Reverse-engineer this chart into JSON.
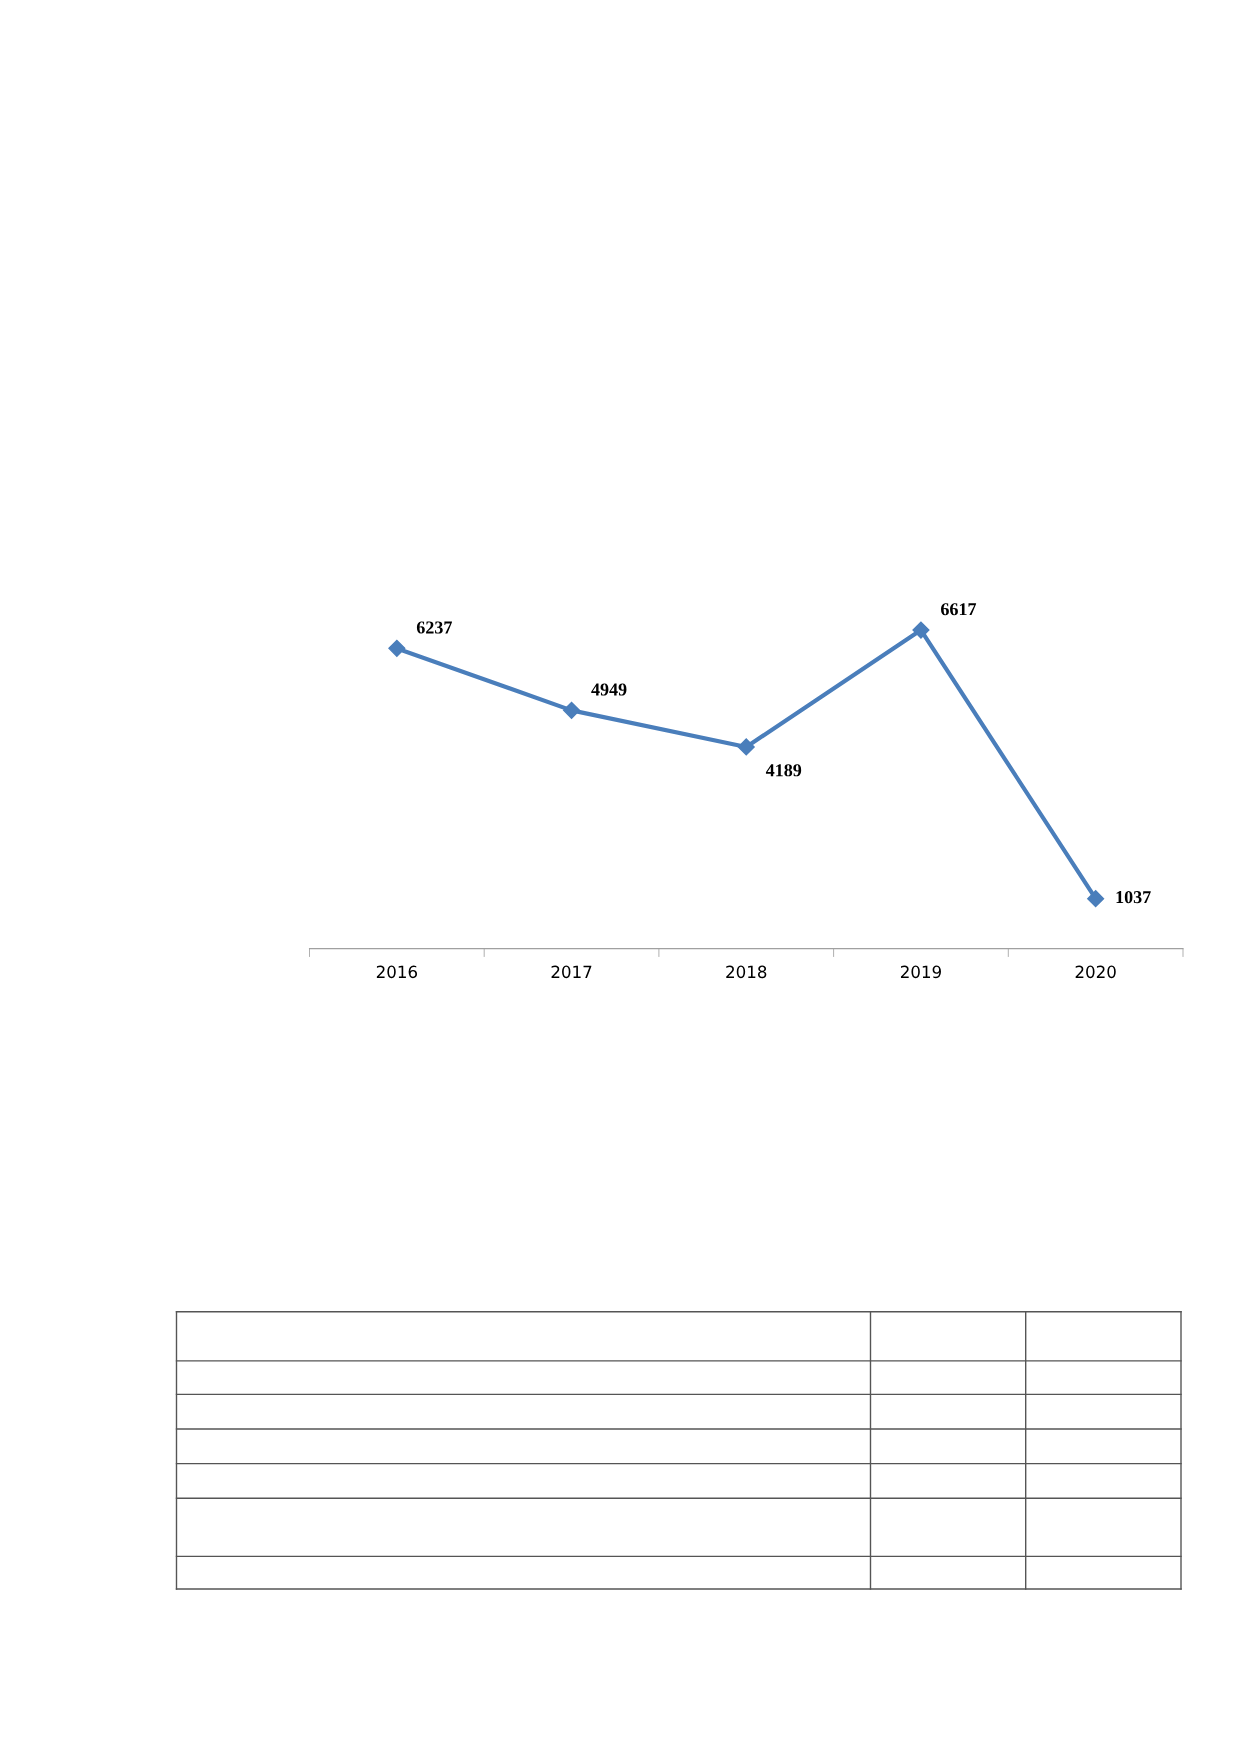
{
  "chart_data": {
    "type": "line",
    "categories": [
      "2016",
      "2017",
      "2018",
      "2019",
      "2020"
    ],
    "series": [
      {
        "color": "#4a7ebb",
        "values": [
          6237,
          4949,
          4189,
          6617,
          1037
        ]
      }
    ],
    "data_labels": true,
    "marker": "diamond",
    "line_style": "solid"
  }
}
